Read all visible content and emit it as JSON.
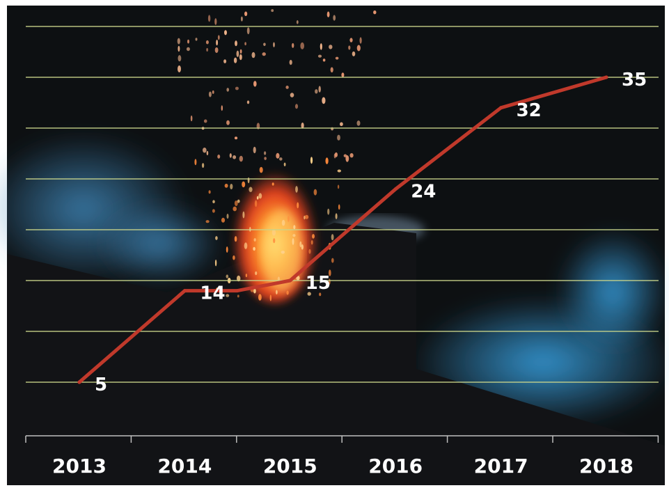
{
  "chart_data": {
    "type": "line",
    "title": "",
    "xlabel": "",
    "ylabel": "",
    "categories": [
      "2013",
      "2014",
      "2015",
      "2016",
      "2017",
      "2018"
    ],
    "x": [
      2013,
      2014,
      2014.5,
      2015,
      2016,
      2017,
      2018
    ],
    "values": [
      5,
      14,
      14,
      15,
      24,
      32,
      35
    ],
    "data_labels": [
      {
        "x": 2013,
        "value": 5,
        "label": "5"
      },
      {
        "x": 2014,
        "value": 14,
        "label": "14"
      },
      {
        "x": 2015,
        "value": 15,
        "label": "15"
      },
      {
        "x": 2016,
        "value": 24,
        "label": "24"
      },
      {
        "x": 2017,
        "value": 32,
        "label": "32"
      },
      {
        "x": 2018,
        "value": 35,
        "label": "35"
      }
    ],
    "ylim": [
      0,
      40
    ],
    "y_gridlines": [
      5,
      10,
      15,
      20,
      25,
      30,
      35,
      40
    ],
    "grid": true,
    "legend": "none",
    "background": "photograph of a night fire with sparks, blue smoke and a dark roof silhouette",
    "colors": {
      "line": "#c0392b",
      "gridline": "#c9d48a",
      "label": "#ffffff",
      "axis": "#bfbfbf",
      "frame": "#111111"
    }
  }
}
